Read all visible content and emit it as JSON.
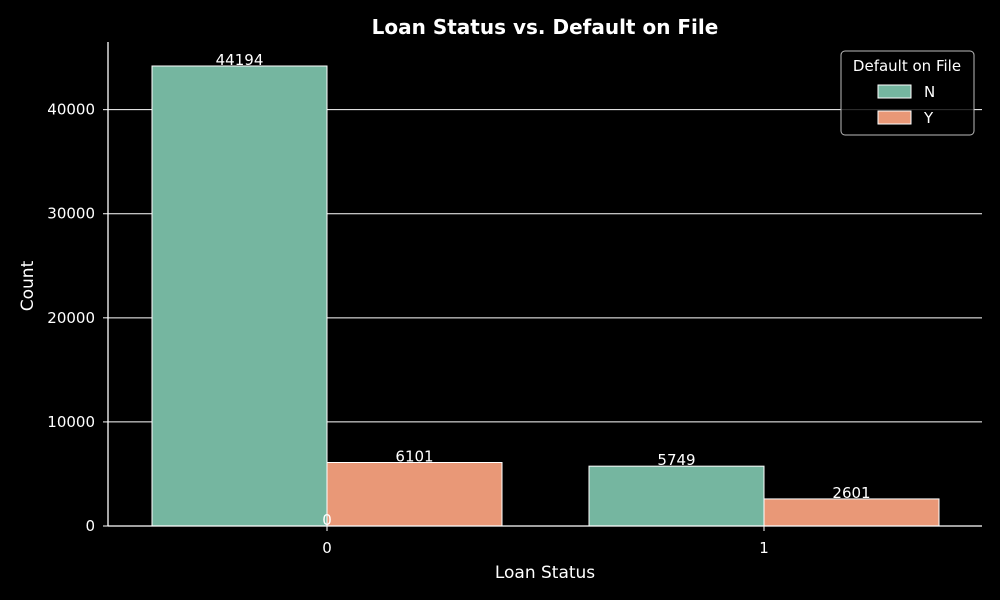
{
  "chart_data": {
    "type": "bar",
    "title": "Loan Status vs. Default on File",
    "xlabel": "Loan Status",
    "ylabel": "Count",
    "categories": [
      "0",
      "1"
    ],
    "ylim": [
      0,
      46500
    ],
    "yticks": [
      0,
      10000,
      20000,
      30000,
      40000
    ],
    "grid": true,
    "legend": {
      "title": "Default on File",
      "placement": "top-right"
    },
    "series": [
      {
        "name": "N",
        "values": [
          44194,
          5749
        ],
        "color": "#75b6a0"
      },
      {
        "name": "Y",
        "values": [
          6101,
          2601
        ],
        "color": "#e99877"
      }
    ],
    "extra_label": "0"
  }
}
